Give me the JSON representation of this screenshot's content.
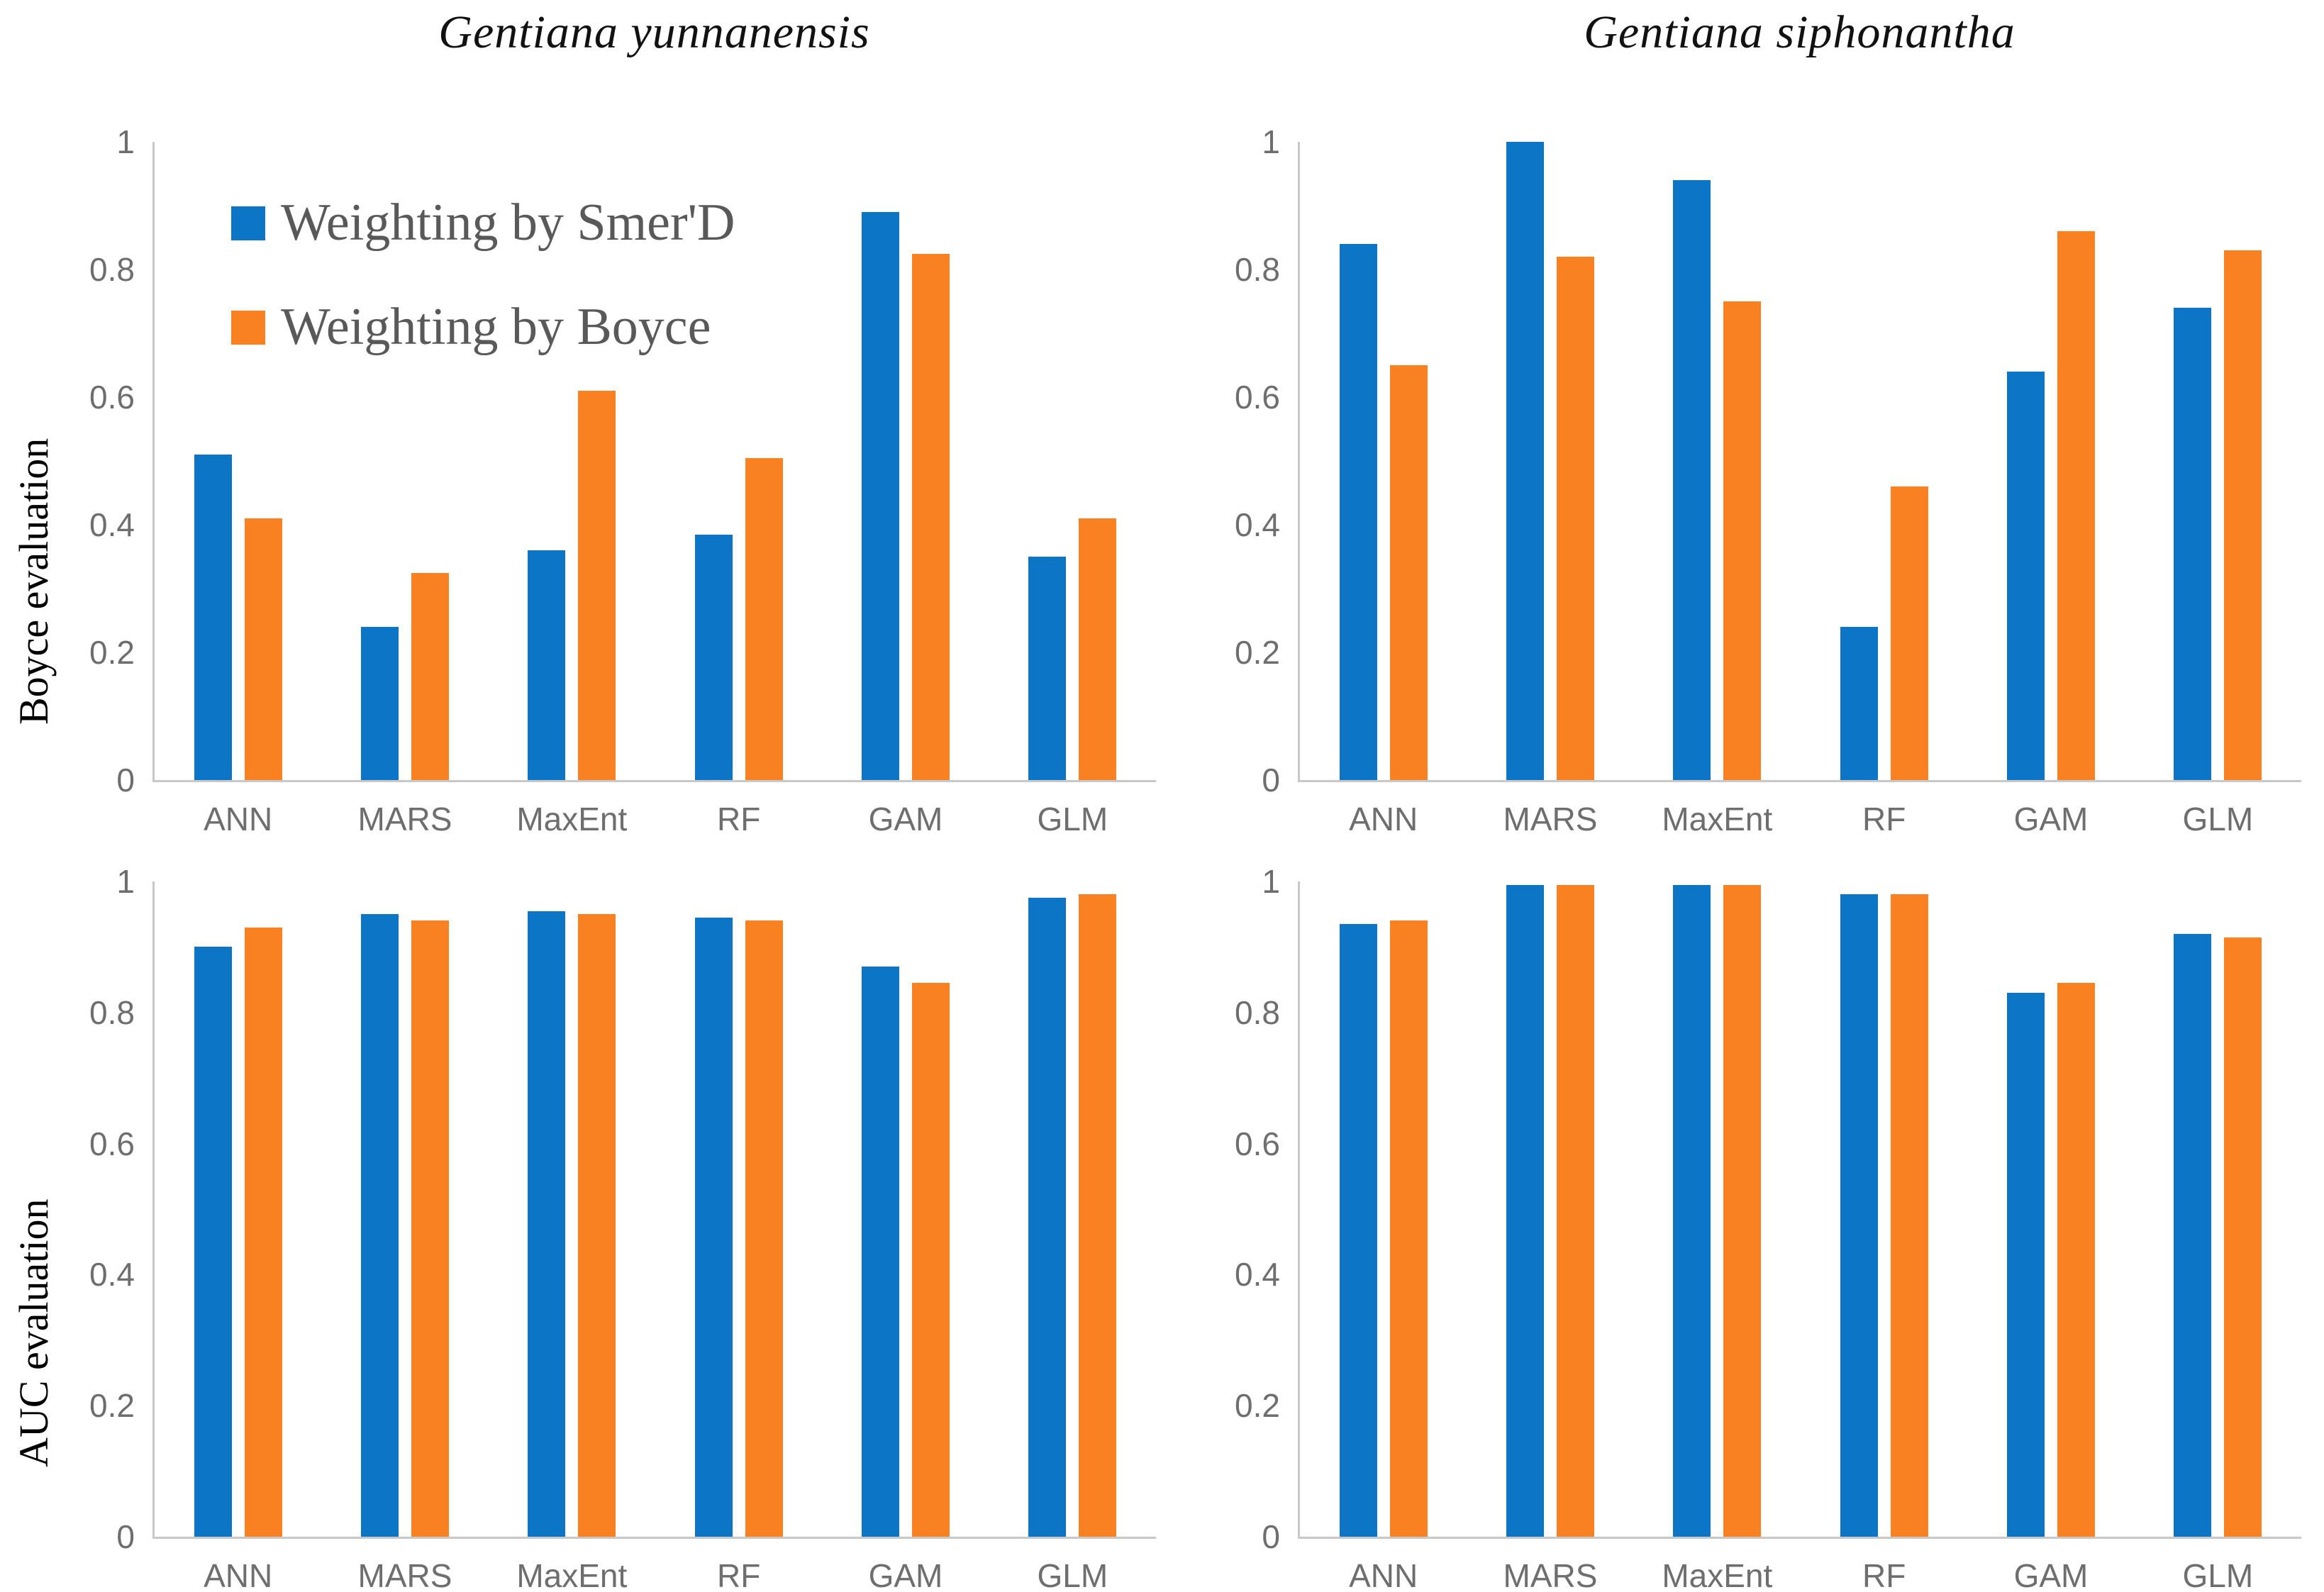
{
  "figure": {
    "columns": [
      {
        "title": "Gentiana yunnanensis"
      },
      {
        "title": "Gentiana siphonantha"
      }
    ],
    "rows": [
      {
        "label": "Boyce evaluation"
      },
      {
        "label": "AUC evaluation"
      }
    ]
  },
  "colors": {
    "series_blue": "#0d75c5",
    "series_orange": "#fa8121",
    "axis_line": "#c8c8c8",
    "tick_text": "#6e6e6e",
    "legend_text": "#595959",
    "title_text": "#111111"
  },
  "chart_data": [
    {
      "type": "bar",
      "title": "Gentiana yunnanensis",
      "ylabel": "Boyce evaluation",
      "categories": [
        "ANN",
        "MARS",
        "MaxEnt",
        "RF",
        "GAM",
        "GLM"
      ],
      "series": [
        {
          "name": "Weighting by Smer'D",
          "color": "#0d75c5",
          "values": [
            0.51,
            0.24,
            0.36,
            0.385,
            0.89,
            0.35
          ]
        },
        {
          "name": "Weighting by Boyce",
          "color": "#fa8121",
          "values": [
            0.41,
            0.325,
            0.61,
            0.505,
            0.825,
            0.41
          ]
        }
      ],
      "ylim": [
        0,
        1
      ],
      "yticks": [
        0,
        0.2,
        0.4,
        0.6,
        0.8,
        1
      ],
      "ytick_labels": [
        "0",
        "0.2",
        "0.4",
        "0.6",
        "0.8",
        "1"
      ],
      "grid": false,
      "legend_visible": true,
      "legend_position": "inside-top-left"
    },
    {
      "type": "bar",
      "title": "Gentiana siphonantha",
      "ylabel": "Boyce evaluation",
      "categories": [
        "ANN",
        "MARS",
        "MaxEnt",
        "RF",
        "GAM",
        "GLM"
      ],
      "series": [
        {
          "name": "Weighting by Smer'D",
          "color": "#0d75c5",
          "values": [
            0.84,
            1.0,
            0.94,
            0.24,
            0.64,
            0.74
          ]
        },
        {
          "name": "Weighting by Boyce",
          "color": "#fa8121",
          "values": [
            0.65,
            0.82,
            0.75,
            0.46,
            0.86,
            0.83
          ]
        }
      ],
      "ylim": [
        0,
        1
      ],
      "yticks": [
        0,
        0.2,
        0.4,
        0.6,
        0.8,
        1
      ],
      "ytick_labels": [
        "0",
        "0.2",
        "0.4",
        "0.6",
        "0.8",
        "1"
      ],
      "grid": false,
      "legend_visible": false
    },
    {
      "type": "bar",
      "title": "Gentiana yunnanensis",
      "ylabel": "AUC evaluation",
      "categories": [
        "ANN",
        "MARS",
        "MaxEnt",
        "RF",
        "GAM",
        "GLM"
      ],
      "series": [
        {
          "name": "Weighting by Smer'D",
          "color": "#0d75c5",
          "values": [
            0.9,
            0.95,
            0.955,
            0.945,
            0.87,
            0.975
          ]
        },
        {
          "name": "Weighting by Boyce",
          "color": "#fa8121",
          "values": [
            0.93,
            0.94,
            0.95,
            0.94,
            0.845,
            0.98
          ]
        }
      ],
      "ylim": [
        0,
        1
      ],
      "yticks": [
        0,
        0.2,
        0.4,
        0.6,
        0.8,
        1
      ],
      "ytick_labels": [
        "0",
        "0.2",
        "0.4",
        "0.6",
        "0.8",
        "1"
      ],
      "grid": false,
      "legend_visible": false
    },
    {
      "type": "bar",
      "title": "Gentiana siphonantha",
      "ylabel": "AUC evaluation",
      "categories": [
        "ANN",
        "MARS",
        "MaxEnt",
        "RF",
        "GAM",
        "GLM"
      ],
      "series": [
        {
          "name": "Weighting by Smer'D",
          "color": "#0d75c5",
          "values": [
            0.935,
            0.995,
            0.995,
            0.98,
            0.83,
            0.92
          ]
        },
        {
          "name": "Weighting by Boyce",
          "color": "#fa8121",
          "values": [
            0.94,
            0.995,
            0.995,
            0.98,
            0.845,
            0.915
          ]
        }
      ],
      "ylim": [
        0,
        1
      ],
      "yticks": [
        0,
        0.2,
        0.4,
        0.6,
        0.8,
        1
      ],
      "ytick_labels": [
        "0",
        "0.2",
        "0.4",
        "0.6",
        "0.8",
        "1"
      ],
      "grid": false,
      "legend_visible": false
    }
  ]
}
